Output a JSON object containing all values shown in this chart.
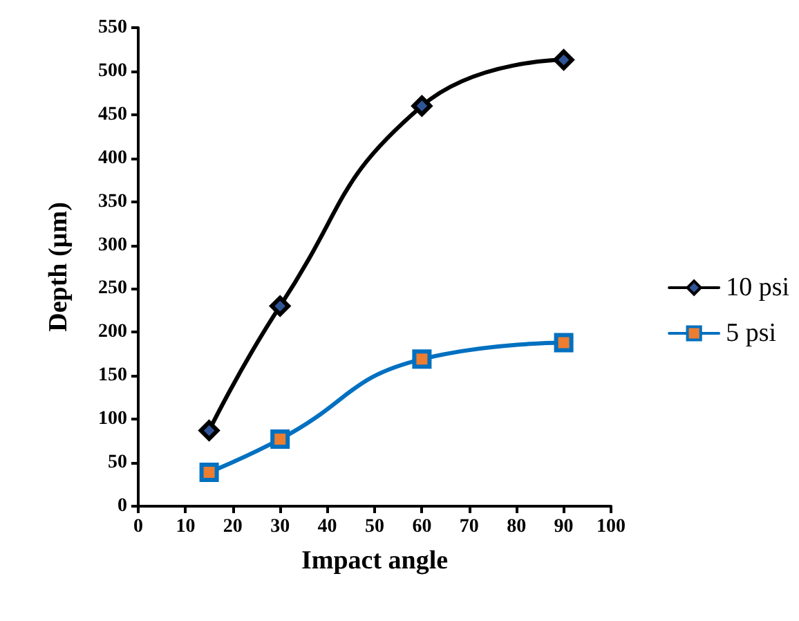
{
  "chart_data": {
    "type": "line",
    "xlabel": "Impact angle",
    "ylabel": "Depth (µm)",
    "x": [
      15,
      30,
      60,
      90
    ],
    "series": [
      {
        "name": "10 psi",
        "color": "#000000",
        "marker": "diamond",
        "values": [
          87,
          230,
          460,
          513
        ]
      },
      {
        "name": "5 psi",
        "color": "#0070c0",
        "marker": "square",
        "values": [
          39,
          77,
          169,
          188
        ]
      }
    ],
    "xlim": [
      0,
      100
    ],
    "xticks": [
      0,
      10,
      20,
      30,
      40,
      50,
      60,
      70,
      80,
      90,
      100
    ],
    "ylim": [
      0,
      550
    ],
    "yticks": [
      0,
      50,
      100,
      150,
      200,
      250,
      300,
      350,
      400,
      450,
      500,
      550
    ],
    "grid": false,
    "legend": "right",
    "line_style": "solid"
  }
}
